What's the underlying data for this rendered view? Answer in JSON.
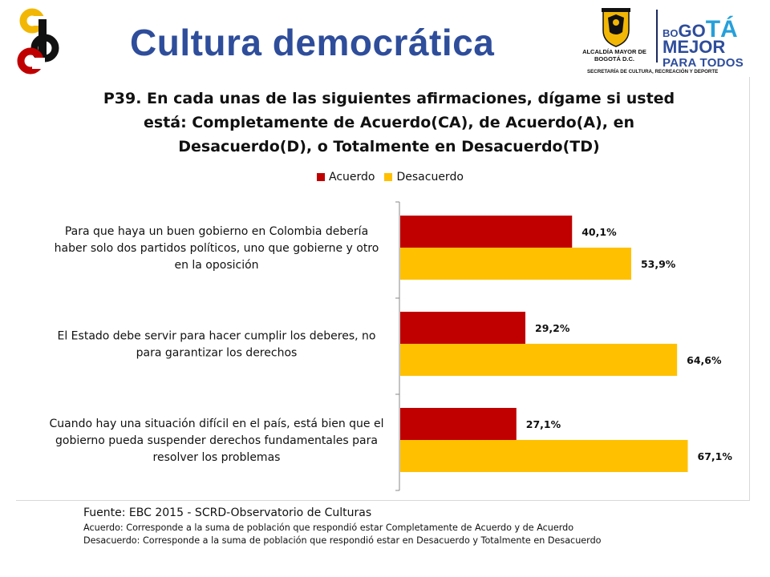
{
  "header": {
    "title": "Cultura democrática",
    "brand": {
      "crest_text": "ALCALDÍA MAYOR DE BOGOTÁ D.C.",
      "line1_small": "BO",
      "line1_mid": "GO",
      "line1_big": "TÁ",
      "line2": "MEJOR",
      "line3": "PARA TODOS",
      "secretaria": "SECRETARÍA DE CULTURA, RECREACIÓN Y DEPORTE"
    },
    "colors": {
      "title": "#2e4d9b",
      "logo_yellow": "#f2b705",
      "logo_red": "#c00000",
      "logo_black": "#111111"
    }
  },
  "chart_data": {
    "type": "bar",
    "orientation": "horizontal",
    "title_lines": [
      "P39. En cada unas de las siguientes afirmaciones, dígame si usted",
      "está: Completamente de Acuerdo(CA), de Acuerdo(A), en",
      "Desacuerdo(D), o Totalmente en Desacuerdo(TD)"
    ],
    "legend": [
      "Acuerdo",
      "Desacuerdo"
    ],
    "legend_position": "top",
    "categories": [
      [
        "Para que haya un buen gobierno en Colombia debería",
        "haber solo dos partidos políticos, uno que gobierne y otro",
        "en la oposición"
      ],
      [
        "El Estado debe servir para hacer cumplir los deberes, no",
        "para garantizar los derechos"
      ],
      [
        "Cuando hay una situación difícil en el país, está bien que el",
        "gobierno pueda suspender derechos fundamentales para",
        "resolver los problemas"
      ]
    ],
    "series": [
      {
        "name": "Acuerdo",
        "color": "#c00000",
        "values": [
          40.1,
          29.2,
          27.1
        ],
        "labels": [
          "40,1%",
          "29,2%",
          "27,1%"
        ]
      },
      {
        "name": "Desacuerdo",
        "color": "#ffc000",
        "values": [
          53.9,
          64.6,
          67.1
        ],
        "labels": [
          "53,9%",
          "64,6%",
          "67,1%"
        ]
      }
    ],
    "xlim": [
      0,
      100
    ],
    "grid": false
  },
  "footer": {
    "source": "Fuente: EBC 2015 - SCRD-Observatorio de Culturas",
    "note_acuerdo": "Acuerdo: Corresponde a la suma de población que respondió estar Completamente de Acuerdo y de Acuerdo",
    "note_desacuerdo": "Desacuerdo: Corresponde a la suma de población que respondió estar en Desacuerdo y Totalmente en Desacuerdo"
  }
}
